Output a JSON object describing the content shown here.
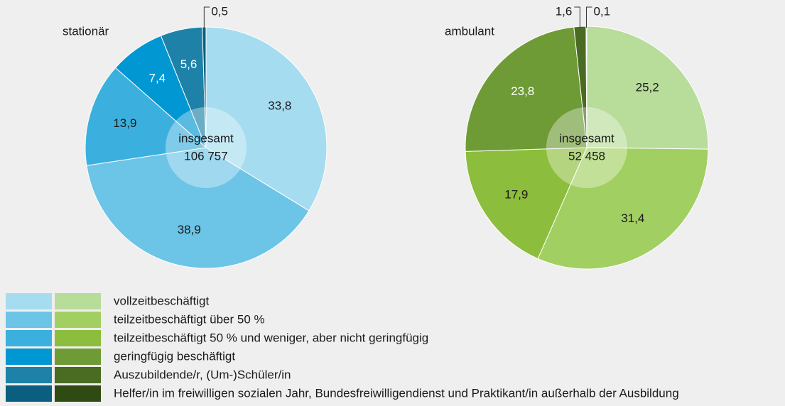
{
  "chart_data": [
    {
      "type": "pie",
      "title": "stationär",
      "center_label": "insgesamt",
      "total_label": "106 757",
      "values": [
        33.8,
        38.9,
        13.9,
        7.4,
        5.6,
        0.5
      ],
      "value_labels": [
        "33,8",
        "38,9",
        "13,9",
        "7,4",
        "5,6",
        "0,5"
      ],
      "colors": [
        "#a6dcf0",
        "#6cc4e6",
        "#3bb0de",
        "#0097d3",
        "#1e82a8",
        "#0a5f80"
      ]
    },
    {
      "type": "pie",
      "title": "ambulant",
      "center_label": "insgesamt",
      "total_label": "52 458",
      "values": [
        25.2,
        31.4,
        17.9,
        23.8,
        1.6,
        0.1
      ],
      "value_labels": [
        "25,2",
        "31,4",
        "17,9",
        "23,8",
        "1,6",
        "0,1"
      ],
      "colors": [
        "#b8dc9a",
        "#a2cf62",
        "#8cbd3c",
        "#6e9b35",
        "#4a6b22",
        "#2f4a12"
      ]
    }
  ],
  "legend": [
    "vollzeitbeschäftigt",
    "teilzeitbeschäftigt über 50 %",
    "teilzeitbeschäftigt 50 % und weniger, aber nicht geringfügig",
    "geringfügig beschäftigt",
    "Auszubildende/r, (Um-)Schüler/in",
    "Helfer/in im freiwilligen sozialen Jahr, Bundesfreiwilligendienst und Praktikant/in außerhalb der Ausbildung"
  ]
}
